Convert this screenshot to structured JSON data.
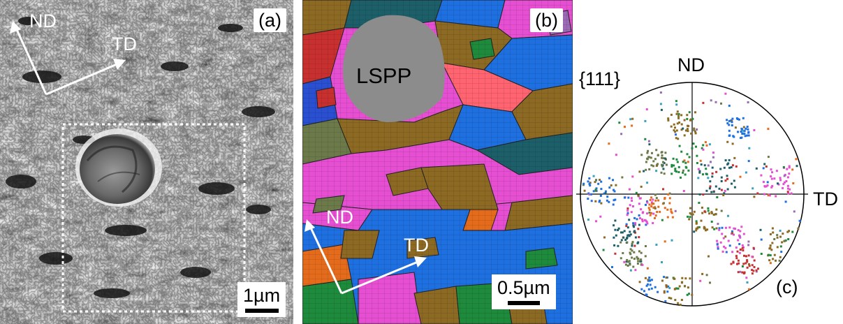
{
  "panels": {
    "a": {
      "tag": "(a)",
      "axis_nd": "ND",
      "axis_td": "TD",
      "scale": "1µm"
    },
    "b": {
      "tag": "(b)",
      "particle": "LSPP",
      "axis_nd": "ND",
      "axis_td": "TD",
      "scale": "0.5µm"
    },
    "c": {
      "tag": "(c)",
      "family": "{111}",
      "axis_nd": "ND",
      "axis_td": "TD"
    }
  },
  "colors": {
    "orientation_palette": [
      "#e64fd2",
      "#1e6fe0",
      "#8d6a23",
      "#1e8a3c",
      "#e46b1c",
      "#6c7a4a",
      "#1d5f68",
      "#c83030",
      "#9b6ab5",
      "#3aa0c0"
    ],
    "particle": "#8c8c8c"
  }
}
